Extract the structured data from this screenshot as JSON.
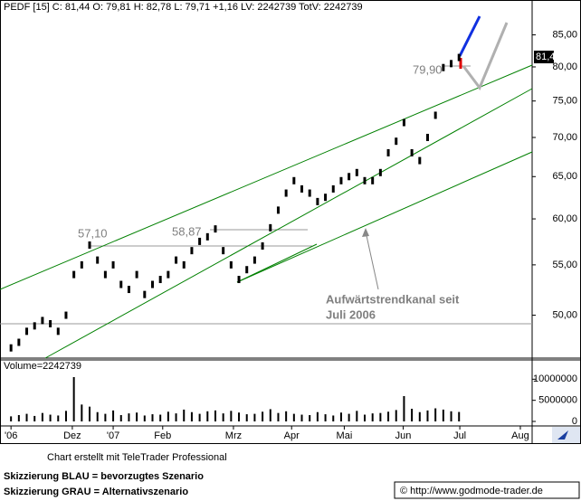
{
  "chart_data": {
    "type": "price",
    "header": "PEDF [15] C: 81,44 O: 79,81 H: 82,78 L: 79,71 +1,16 LV: 2242739 TotV: 2242739",
    "log_scale": true,
    "color": "#000000",
    "x": [
      0,
      1,
      2,
      3,
      4,
      5,
      6,
      7,
      8,
      9,
      10,
      11,
      12,
      13,
      14,
      15,
      16,
      17,
      18,
      19,
      20,
      21,
      22,
      23,
      24,
      25,
      26,
      27,
      28,
      29,
      30,
      31,
      32,
      33,
      34,
      35,
      36,
      37,
      38,
      39,
      40,
      41,
      42,
      43,
      44,
      45,
      46,
      47,
      48,
      49,
      50,
      51,
      52,
      53,
      54,
      55,
      56,
      57
    ],
    "values": [
      47,
      47.5,
      48.5,
      49,
      49.5,
      49.2,
      48.5,
      50,
      54,
      55,
      57.1,
      55.5,
      54,
      55,
      53,
      52.5,
      54,
      52,
      53,
      53.5,
      54,
      55.5,
      55,
      56.5,
      57.5,
      58,
      58.87,
      56.5,
      55,
      53.5,
      54.5,
      55.5,
      57,
      59,
      61,
      63,
      64.5,
      63.5,
      63,
      62,
      62.5,
      63.5,
      64.5,
      65,
      65.5,
      64.5,
      64.5,
      65.5,
      68,
      69.5,
      72,
      68,
      67,
      70,
      73,
      79.9,
      80.5,
      81.44
    ],
    "xlim": [
      -1.4,
      66.3
    ],
    "xticks": [
      {
        "value": 0,
        "label": "'06"
      },
      {
        "value": 7.8,
        "label": "Dez"
      },
      {
        "value": 13,
        "label": "'07"
      },
      {
        "value": 19.3,
        "label": "Feb"
      },
      {
        "value": 28.3,
        "label": "Mrz"
      },
      {
        "value": 35.7,
        "label": "Apr"
      },
      {
        "value": 42.4,
        "label": "Mai"
      },
      {
        "value": 49.9,
        "label": "Jun"
      },
      {
        "value": 57.1,
        "label": "Jul"
      },
      {
        "value": 64.8,
        "label": "Aug"
      }
    ],
    "ylim": [
      46.1,
      90.8
    ],
    "yticks": [
      {
        "value": 50,
        "label": "50,00"
      },
      {
        "value": 55,
        "label": "55,00"
      },
      {
        "value": 60,
        "label": "60,00"
      },
      {
        "value": 65,
        "label": "65,00"
      },
      {
        "value": 70,
        "label": "70,00"
      },
      {
        "value": 75,
        "label": "75,00"
      },
      {
        "value": 80,
        "label": "80,00"
      },
      {
        "value": 85,
        "label": "85,00"
      }
    ],
    "last_label": "81,44",
    "annotations": [
      "57,10",
      "58,87",
      "79,90",
      "Aufwärtstrendkanal seit",
      "Juli 2006"
    ],
    "volume": {
      "label": "Volume=2242739",
      "color": "#000000",
      "values": [
        1200000,
        1500000,
        1800000,
        1300000,
        2000000,
        1600000,
        1400000,
        2500000,
        10500000,
        4000000,
        3500000,
        2200000,
        1800000,
        2600000,
        1500000,
        1900000,
        2100000,
        1400000,
        1700000,
        1600000,
        2300000,
        1900000,
        2800000,
        2200000,
        1800000,
        2400000,
        2600000,
        1900000,
        2500000,
        2100000,
        1700000,
        1800000,
        2300000,
        2900000,
        2000000,
        2400000,
        1800000,
        1600000,
        1500000,
        2200000,
        1700000,
        1400000,
        2100000,
        1800000,
        2500000,
        1600000,
        1900000,
        2000000,
        2300000,
        2700000,
        6000000,
        3000000,
        2200000,
        2600000,
        3100000,
        2800000,
        2400000,
        2242739
      ],
      "ylim": [
        0,
        12000000
      ],
      "yticks": [
        0,
        5000000,
        10000000
      ]
    },
    "footer": [
      "Chart erstellt mit TeleTrader Professional",
      "Skizzierung BLAU = bevorzugtes Szenario",
      "Skizzierung GRAU = Alternativszenario",
      "© http://www.godmode-trader.de"
    ]
  }
}
